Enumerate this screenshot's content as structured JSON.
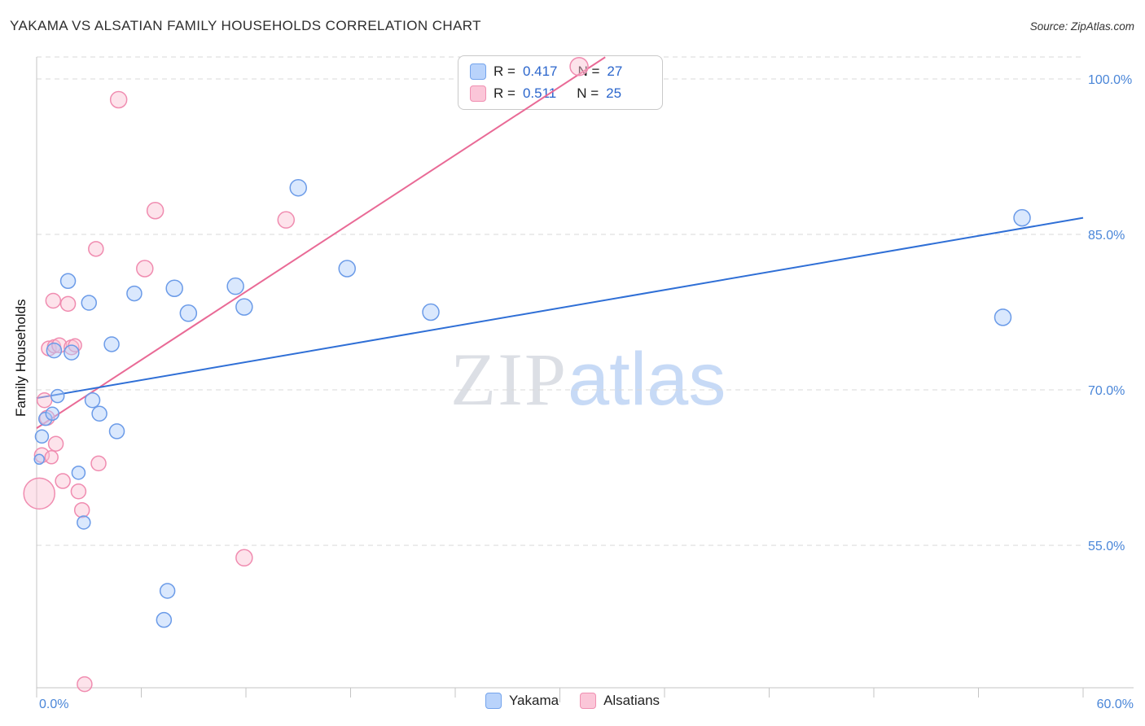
{
  "header": {
    "title": "YAKAMA VS ALSATIAN FAMILY HOUSEHOLDS CORRELATION CHART",
    "source": "Source: ZipAtlas.com"
  },
  "watermark": {
    "part1": "ZIP",
    "part2": "atlas"
  },
  "legend_box": {
    "rows": [
      {
        "series": "Yakama",
        "r_label": "R =",
        "r_value": "0.417",
        "n_label": "N =",
        "n_value": "27"
      },
      {
        "series": "Alsatians",
        "r_label": "R =",
        "r_value": "0.511",
        "n_label": "N =",
        "n_value": "25"
      }
    ]
  },
  "bottom_legend": {
    "items": [
      {
        "label": "Yakama"
      },
      {
        "label": "Alsatians"
      }
    ]
  },
  "axes": {
    "y_label": "Family Households",
    "x_min_label": "0.0%",
    "x_max_label": "60.0%"
  },
  "colors": {
    "yakama_fill": "#aecbfa",
    "yakama_stroke": "#6b9be8",
    "yakama_trend": "#2f6fd6",
    "alsatian_fill": "#fbc0d2",
    "alsatian_stroke": "#f08cb0",
    "alsatian_trend": "#e96a96",
    "tick_label": "#4a86d8",
    "grid": "#d8d8d8"
  },
  "chart_data": {
    "type": "scatter",
    "title": "YAKAMA VS ALSATIAN FAMILY HOUSEHOLDS CORRELATION CHART",
    "xlabel": "",
    "ylabel": "Family Households",
    "x_axis": {
      "min": 0,
      "max": 60,
      "min_label": "0.0%",
      "max_label": "60.0%",
      "unit": "%"
    },
    "y_axis": {
      "ticks": [
        100,
        85,
        70,
        55
      ],
      "tick_labels": [
        "100.0%",
        "85.0%",
        "70.0%",
        "55.0%"
      ],
      "unit": "%"
    },
    "grid": "dashed-horizontal",
    "legend_position": "bottom-center",
    "point_format": "[x_percent, y_percent, radius_px]",
    "series": [
      {
        "name": "Yakama",
        "R": 0.417,
        "N": 27,
        "points": [
          [
            0.15,
            63.3,
            6
          ],
          [
            0.3,
            65.5,
            8
          ],
          [
            0.5,
            67.2,
            8
          ],
          [
            0.9,
            67.7,
            8
          ],
          [
            1.2,
            69.4,
            8
          ],
          [
            1.0,
            73.8,
            9
          ],
          [
            1.8,
            80.5,
            9
          ],
          [
            2.0,
            73.6,
            9
          ],
          [
            2.4,
            62.0,
            8
          ],
          [
            2.7,
            57.2,
            8
          ],
          [
            3.0,
            78.4,
            9
          ],
          [
            3.2,
            69.0,
            9
          ],
          [
            3.6,
            67.7,
            9
          ],
          [
            4.3,
            74.4,
            9
          ],
          [
            4.6,
            66.0,
            9
          ],
          [
            5.6,
            79.3,
            9
          ],
          [
            7.3,
            47.8,
            9
          ],
          [
            7.5,
            50.6,
            9
          ],
          [
            7.9,
            79.8,
            10
          ],
          [
            8.7,
            77.4,
            10
          ],
          [
            11.4,
            80.0,
            10
          ],
          [
            11.9,
            78.0,
            10
          ],
          [
            15.0,
            89.5,
            10
          ],
          [
            17.8,
            81.7,
            10
          ],
          [
            22.6,
            77.5,
            10
          ],
          [
            55.4,
            77.0,
            10
          ],
          [
            56.5,
            86.6,
            10
          ]
        ]
      },
      {
        "name": "Alsatians",
        "R": 0.511,
        "N": 25,
        "points": [
          [
            0.15,
            60.0,
            19
          ],
          [
            0.3,
            63.7,
            9
          ],
          [
            0.45,
            69.0,
            9
          ],
          [
            0.6,
            67.3,
            9
          ],
          [
            0.7,
            74.0,
            9
          ],
          [
            0.85,
            63.5,
            8
          ],
          [
            0.95,
            78.6,
            9
          ],
          [
            1.0,
            74.2,
            8
          ],
          [
            1.1,
            64.8,
            9
          ],
          [
            1.3,
            74.3,
            9
          ],
          [
            1.5,
            61.2,
            9
          ],
          [
            1.8,
            78.3,
            9
          ],
          [
            2.0,
            74.1,
            9
          ],
          [
            2.2,
            74.3,
            8
          ],
          [
            2.4,
            60.2,
            9
          ],
          [
            2.6,
            58.4,
            9
          ],
          [
            2.75,
            41.6,
            9
          ],
          [
            3.4,
            83.6,
            9
          ],
          [
            3.55,
            62.9,
            9
          ],
          [
            4.7,
            98.0,
            10
          ],
          [
            6.2,
            81.7,
            10
          ],
          [
            6.8,
            87.3,
            10
          ],
          [
            11.9,
            53.8,
            10
          ],
          [
            14.3,
            86.4,
            10
          ],
          [
            31.1,
            101.2,
            11
          ]
        ]
      }
    ],
    "trend_lines": [
      {
        "series": "Yakama",
        "from": [
          0,
          69.2
        ],
        "to": [
          60,
          86.6
        ]
      },
      {
        "series": "Alsatians",
        "from": [
          0,
          66.3
        ],
        "to": [
          32.6,
          102.1
        ]
      }
    ]
  }
}
